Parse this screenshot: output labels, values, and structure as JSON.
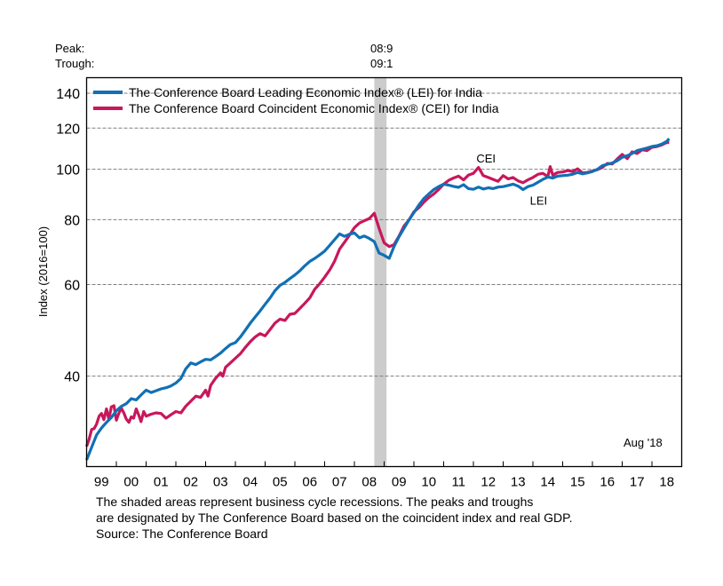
{
  "chart_data": {
    "type": "line",
    "title": "",
    "ylabel": "Index (2016=100)",
    "xlabel": "",
    "yscale": "log",
    "ylim": [
      26.8,
      150
    ],
    "xlim": [
      1999.0,
      2019.0
    ],
    "grid": "horizontal-dashed",
    "yticks": [
      40,
      60,
      80,
      100,
      120,
      140
    ],
    "ytick_labels": [
      "40",
      "60",
      "80",
      "100",
      "120",
      "140"
    ],
    "xtick_labels": [
      "99",
      "00",
      "01",
      "02",
      "03",
      "04",
      "05",
      "06",
      "07",
      "08",
      "09",
      "10",
      "11",
      "12",
      "13",
      "14",
      "15",
      "16",
      "17",
      "18"
    ],
    "legend_position": "top-left",
    "recessions": [
      {
        "peak": "08:9",
        "trough": "09:1",
        "start": 2008.67,
        "end": 2009.08
      }
    ],
    "peak_label": "Peak:",
    "trough_label": "Trough:",
    "annotations": [
      {
        "text": "CEI",
        "series": "CEI",
        "x": 2012.1,
        "y": 103
      },
      {
        "text": "LEI",
        "series": "LEI",
        "x": 2013.9,
        "y": 85.5
      },
      {
        "text": "Aug '18",
        "x": 2017.5,
        "y": 28.6
      }
    ],
    "series": [
      {
        "name": "The Conference Board Leading Economic Index® (LEI) for India",
        "short": "LEI",
        "color": "#1170B5",
        "x": [
          1999.0,
          1999.17,
          1999.33,
          1999.5,
          1999.67,
          1999.83,
          2000.0,
          2000.17,
          2000.33,
          2000.5,
          2000.67,
          2000.83,
          2001.0,
          2001.17,
          2001.33,
          2001.5,
          2001.67,
          2001.83,
          2002.0,
          2002.17,
          2002.33,
          2002.5,
          2002.67,
          2002.83,
          2003.0,
          2003.17,
          2003.33,
          2003.5,
          2003.67,
          2003.83,
          2004.0,
          2004.17,
          2004.33,
          2004.5,
          2004.67,
          2004.83,
          2005.0,
          2005.17,
          2005.33,
          2005.5,
          2005.67,
          2005.83,
          2006.0,
          2006.17,
          2006.33,
          2006.5,
          2006.67,
          2006.83,
          2007.0,
          2007.17,
          2007.33,
          2007.5,
          2007.67,
          2007.83,
          2008.0,
          2008.17,
          2008.33,
          2008.5,
          2008.67,
          2008.83,
          2009.0,
          2009.17,
          2009.33,
          2009.5,
          2009.67,
          2009.83,
          2010.0,
          2010.17,
          2010.33,
          2010.5,
          2010.67,
          2010.83,
          2011.0,
          2011.17,
          2011.33,
          2011.5,
          2011.67,
          2011.83,
          2012.0,
          2012.17,
          2012.33,
          2012.5,
          2012.67,
          2012.83,
          2013.0,
          2013.17,
          2013.33,
          2013.5,
          2013.67,
          2013.83,
          2014.0,
          2014.17,
          2014.33,
          2014.5,
          2014.67,
          2014.83,
          2015.0,
          2015.17,
          2015.33,
          2015.5,
          2015.67,
          2015.83,
          2016.0,
          2016.17,
          2016.33,
          2016.5,
          2016.67,
          2016.83,
          2017.0,
          2017.17,
          2017.33,
          2017.5,
          2017.67,
          2017.83,
          2018.0,
          2018.17,
          2018.33,
          2018.5,
          2018.58
        ],
        "values": [
          27.6,
          29.2,
          30.8,
          31.8,
          32.6,
          33.3,
          34.3,
          35.0,
          35.4,
          36.2,
          36.0,
          36.8,
          37.6,
          37.2,
          37.5,
          37.8,
          38.0,
          38.3,
          38.8,
          39.6,
          41.3,
          42.4,
          42.1,
          42.6,
          43.1,
          43.0,
          43.6,
          44.3,
          45.2,
          46.0,
          46.4,
          47.6,
          49.0,
          50.6,
          52.0,
          53.4,
          55.0,
          56.6,
          58.4,
          59.8,
          60.6,
          61.6,
          62.6,
          63.8,
          65.2,
          66.5,
          67.4,
          68.4,
          69.6,
          71.4,
          73.2,
          75.1,
          74.3,
          75.0,
          75.4,
          73.8,
          74.4,
          73.6,
          72.6,
          69.0,
          68.3,
          67.4,
          71.0,
          74.2,
          77.0,
          79.8,
          82.5,
          85.4,
          87.8,
          89.6,
          91.4,
          92.6,
          93.6,
          93.2,
          92.7,
          92.3,
          93.4,
          91.8,
          91.5,
          92.4,
          91.6,
          92.1,
          91.8,
          92.4,
          92.6,
          93.1,
          93.6,
          92.8,
          91.4,
          92.6,
          93.2,
          94.4,
          95.6,
          96.6,
          96.2,
          97.0,
          97.2,
          97.4,
          97.8,
          98.6,
          98.0,
          98.4,
          99.0,
          100.0,
          101.6,
          102.2,
          102.8,
          103.8,
          105.4,
          106.2,
          107.2,
          108.6,
          109.2,
          109.8,
          110.6,
          111.0,
          111.8,
          113.2,
          114.5
        ]
      },
      {
        "name": "The Conference Board Coincident Economic Index® (CEI) for India",
        "short": "CEI",
        "color": "#C8175B",
        "x": [
          1999.0,
          1999.08,
          1999.17,
          1999.25,
          1999.33,
          1999.42,
          1999.5,
          1999.58,
          1999.67,
          1999.75,
          1999.83,
          1999.92,
          2000.0,
          2000.08,
          2000.17,
          2000.25,
          2000.33,
          2000.42,
          2000.5,
          2000.58,
          2000.67,
          2000.75,
          2000.83,
          2000.92,
          2001.0,
          2001.17,
          2001.33,
          2001.5,
          2001.67,
          2001.83,
          2002.0,
          2002.17,
          2002.33,
          2002.5,
          2002.67,
          2002.83,
          2003.0,
          2003.08,
          2003.17,
          2003.33,
          2003.5,
          2003.58,
          2003.67,
          2003.83,
          2004.0,
          2004.17,
          2004.33,
          2004.5,
          2004.67,
          2004.83,
          2005.0,
          2005.17,
          2005.33,
          2005.5,
          2005.67,
          2005.83,
          2006.0,
          2006.17,
          2006.33,
          2006.5,
          2006.67,
          2006.83,
          2007.0,
          2007.17,
          2007.33,
          2007.5,
          2007.67,
          2007.83,
          2008.0,
          2008.17,
          2008.33,
          2008.5,
          2008.67,
          2008.83,
          2009.0,
          2009.17,
          2009.33,
          2009.5,
          2009.67,
          2009.83,
          2010.0,
          2010.17,
          2010.33,
          2010.5,
          2010.67,
          2010.83,
          2011.0,
          2011.17,
          2011.33,
          2011.5,
          2011.67,
          2011.83,
          2012.0,
          2012.08,
          2012.17,
          2012.33,
          2012.5,
          2012.67,
          2012.83,
          2013.0,
          2013.17,
          2013.33,
          2013.5,
          2013.67,
          2013.83,
          2014.0,
          2014.17,
          2014.33,
          2014.5,
          2014.58,
          2014.67,
          2014.83,
          2015.0,
          2015.17,
          2015.33,
          2015.5,
          2015.67,
          2015.83,
          2016.0,
          2016.17,
          2016.33,
          2016.5,
          2016.67,
          2016.83,
          2017.0,
          2017.17,
          2017.33,
          2017.5,
          2017.67,
          2017.83,
          2018.0,
          2018.17,
          2018.33,
          2018.5,
          2018.58
        ],
        "values": [
          29.3,
          30.2,
          31.6,
          31.7,
          32.3,
          33.5,
          33.9,
          33.0,
          34.6,
          33.0,
          34.9,
          35.1,
          32.9,
          33.9,
          34.7,
          34.0,
          33.1,
          32.6,
          33.4,
          33.2,
          34.6,
          33.7,
          32.7,
          34.2,
          33.5,
          33.8,
          34.0,
          33.9,
          33.2,
          33.7,
          34.2,
          34.0,
          35.0,
          35.8,
          36.6,
          36.4,
          37.6,
          36.6,
          38.4,
          39.6,
          40.6,
          40.0,
          41.6,
          42.4,
          43.3,
          44.2,
          45.4,
          46.6,
          47.6,
          48.3,
          47.8,
          49.2,
          50.6,
          51.5,
          51.2,
          52.6,
          52.8,
          54.0,
          55.2,
          56.6,
          58.8,
          60.2,
          62.0,
          64.0,
          66.5,
          70.2,
          72.4,
          74.6,
          77.2,
          78.8,
          79.6,
          80.4,
          82.3,
          77.0,
          72.2,
          71.0,
          71.6,
          74.4,
          77.8,
          79.8,
          82.8,
          84.4,
          86.4,
          88.2,
          89.6,
          91.4,
          93.6,
          95.2,
          96.2,
          97.0,
          95.4,
          97.4,
          98.2,
          99.4,
          100.8,
          97.2,
          96.4,
          95.6,
          94.8,
          97.2,
          95.8,
          96.4,
          95.0,
          94.2,
          95.4,
          96.4,
          97.8,
          98.2,
          96.8,
          101.2,
          97.4,
          98.6,
          98.8,
          99.4,
          99.0,
          100.2,
          98.4,
          98.6,
          99.2,
          99.8,
          100.8,
          102.6,
          102.4,
          104.6,
          106.8,
          104.8,
          108.0,
          107.2,
          109.0,
          108.6,
          110.2,
          110.6,
          111.4,
          112.6,
          112.5
        ]
      }
    ]
  },
  "footnote": {
    "lines": [
      "The shaded areas represent business cycle recessions. The peaks and troughs",
      "are designated by The Conference Board based on the coincident index and real GDP.",
      "Source: The Conference Board"
    ]
  }
}
